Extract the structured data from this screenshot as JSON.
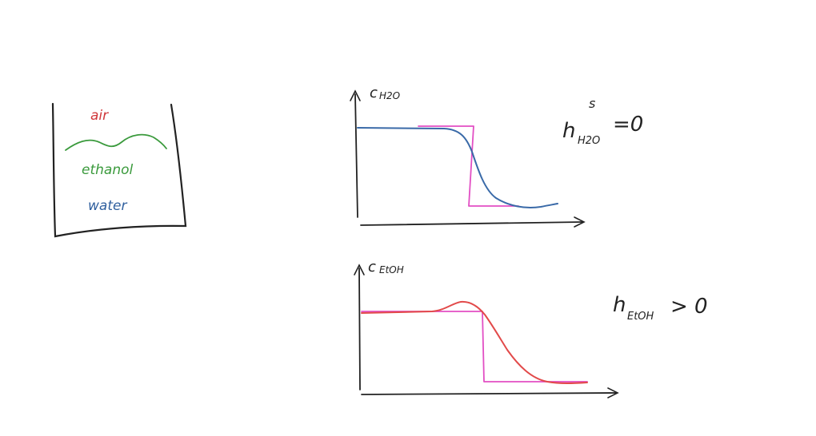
{
  "beaker": {
    "air_label": "air",
    "ethanol_label": "ethanol",
    "water_label": "water"
  },
  "plot_water": {
    "y_axis_label": "c",
    "y_axis_subscript": "H2O",
    "annotation_base": "h",
    "annotation_superscript": "s",
    "annotation_subscript": "H2O",
    "annotation_relation": "=0"
  },
  "plot_ethanol": {
    "y_axis_label": "c",
    "y_axis_subscript": "EtOH",
    "annotation_base": "h",
    "annotation_subscript": "EtOH",
    "annotation_relation": "> 0"
  },
  "colors": {
    "ink": "#222222",
    "air": "#d0373a",
    "ethanol": "#3a9a3c",
    "water": "#2f5f9e",
    "step_profile": "#e24fc4",
    "water_profile": "#3a6aa8",
    "ethanol_profile": "#e24a4a"
  }
}
